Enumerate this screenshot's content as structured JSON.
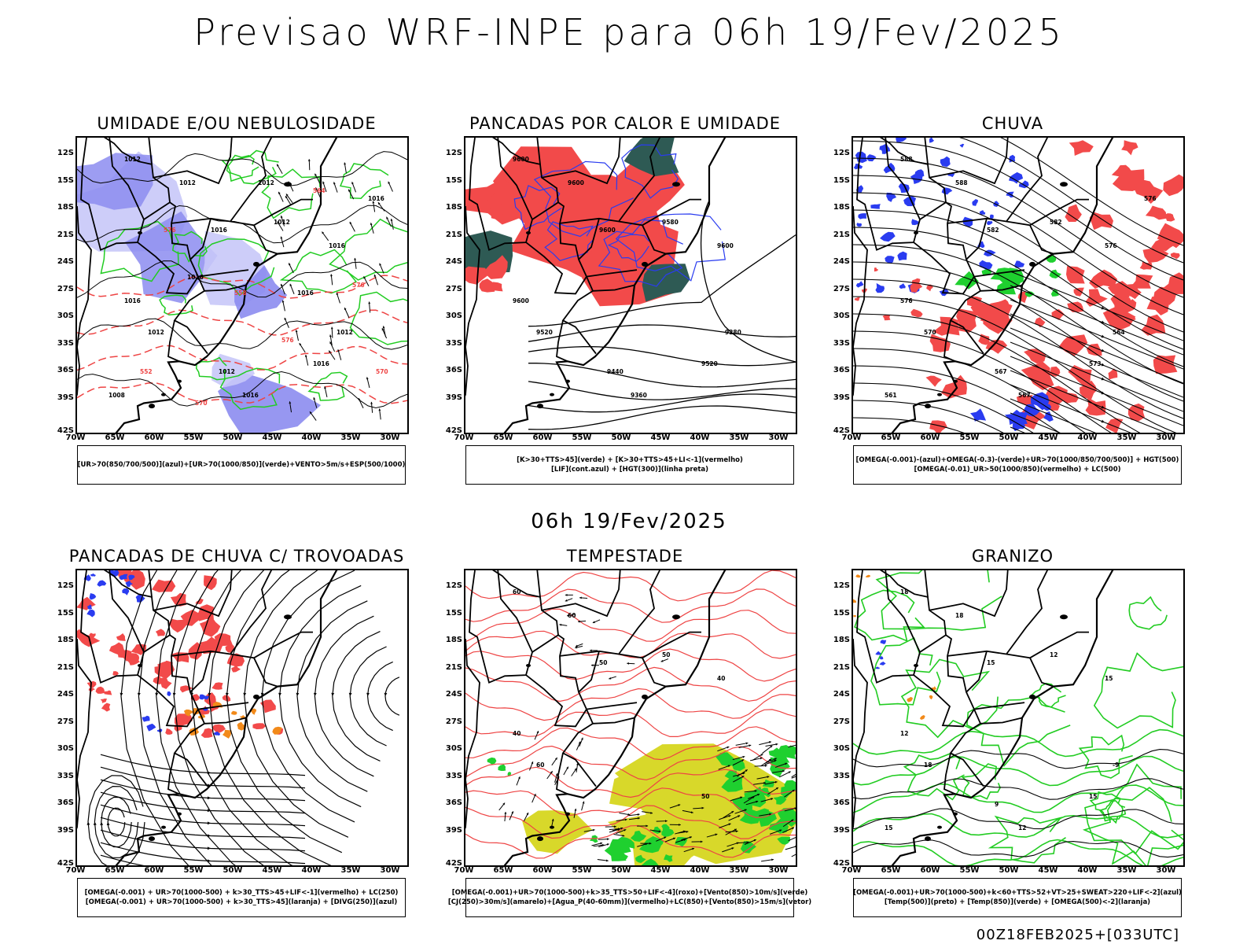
{
  "main_title": "Previsao WRF-INPE  para 06h 19/Fev/2025",
  "mid_title": "06h 19/Fev/2025",
  "footer_code": "00Z18FEB2025+[033UTC]",
  "latitude_labels": [
    "12S",
    "15S",
    "18S",
    "21S",
    "24S",
    "27S",
    "30S",
    "33S",
    "36S",
    "39S",
    "42S"
  ],
  "longitude_labels": [
    "70W",
    "65W",
    "60W",
    "55W",
    "50W",
    "45W",
    "40W",
    "35W",
    "30W"
  ],
  "colors": {
    "red_fill": "#f24a4a",
    "blue_fill": "#2a3cf0",
    "green_fill": "#1fd02f",
    "lavender_fill": "#8c8cf0",
    "light_lavender_fill": "#c8c8f8",
    "yellow_fill": "#d8d82a",
    "dark_teal_fill": "#2e5a54",
    "orange_fill": "#f28a1a",
    "green_contour": "#22cc22",
    "red_contour": "#ee4444",
    "black": "#000000"
  },
  "panels": [
    {
      "title": "UMIDADE E/OU NEBULOSIDADE",
      "legend": [
        "[UR>70(850/700/500)](azul)+[UR>70(1000/850)](verde)+VENTO>5m/s+ESP(500/1000)"
      ],
      "contour_labels": [
        "1012",
        "1012",
        "1016",
        "1012",
        "1016",
        "1016",
        "1012",
        "1016",
        "1012",
        "1016",
        "1012",
        "1008",
        "1016",
        "1012",
        "1016",
        "1016",
        "576",
        "576",
        "576",
        "570",
        "570",
        "564",
        "558",
        "552"
      ]
    },
    {
      "title": "PANCADAS POR CALOR E UMIDADE",
      "legend": [
        "[K>30+TTS>45](verde) + [K>30+TTS>45+LI<-1](vermelho)",
        "[LIF](cont.azul) + [HGT(300)](linha preta)"
      ],
      "contour_labels": [
        "9600",
        "9600",
        "9600",
        "9580",
        "9600",
        "9600",
        "9520",
        "9520",
        "9440",
        "9360",
        "9280"
      ]
    },
    {
      "title": "CHUVA",
      "legend": [
        "[OMEGA(-0.001)-(azul)+OMEGA(-0.3)-(verde)+UR>70(1000/850/700/500)] + HGT(500)",
        "[OMEGA(-0.01)_UR>50(1000/850)(vermelho) + LC(500)"
      ],
      "contour_labels": [
        "588",
        "588",
        "582",
        "582",
        "576",
        "576",
        "570",
        "573",
        "567",
        "567",
        "564",
        "561",
        "576"
      ]
    },
    {
      "title": "PANCADAS DE CHUVA C/ TROVOADAS",
      "legend": [
        "[OMEGA(-0.001) + UR>70(1000-500) + k>30_TTS>45+LIF<-1](vermelho) + LC(250)",
        "[OMEGA(-0.001) + UR>70(1000-500) + k>30_TTS>45](laranja) + [DIVG(250)](azul)"
      ],
      "contour_labels": []
    },
    {
      "title": "TEMPESTADE",
      "legend": [
        "[OMEGA(-0.001)+UR>70(1000-500)+k>35_TTS>50+LIF<-4](roxo)+[Vento(850)>10m/s](verde)",
        "[CJ(250)>30m/s](amarelo)+[Agua_P(40-60mm)](vermelho)+LC(850)+[Vento(850)>15m/s](vetor)"
      ],
      "contour_labels": [
        "60",
        "60",
        "50",
        "50",
        "40",
        "40",
        "60",
        "50"
      ]
    },
    {
      "title": "GRANIZO",
      "legend": [
        "[OMEGA(-0.001)+UR>70(1000-500)+k<60+TTS>52+VT>25+SWEAT>220+LIF<-2](azul)",
        "[Temp(500)](preto) + [Temp(850)](verde) + [OMEGA(500)<-2](laranja)"
      ],
      "contour_labels": [
        "18",
        "18",
        "15",
        "12",
        "15",
        "12",
        "18",
        "15",
        "9",
        "12",
        "-9",
        "15"
      ]
    }
  ]
}
